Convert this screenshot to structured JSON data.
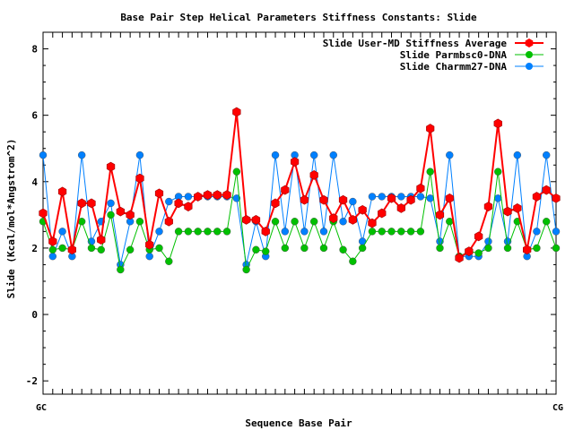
{
  "chart_data": {
    "type": "line",
    "title": "Base Pair Step Helical Parameters Stiffness Constants: Slide",
    "xlabel": "Sequence Base Pair",
    "ylabel": "Slide (Kcal/mol*Angstrom^2)",
    "ylim": [
      -2.4,
      8.5
    ],
    "yticks": [
      -2,
      0,
      2,
      4,
      6,
      8
    ],
    "grid": false,
    "legend_position": "top-right",
    "x_tick_labels": [
      "GC",
      "CG"
    ],
    "series": [
      {
        "name": "Slide User-MD Stiffness Average",
        "color": "#ff0000",
        "marker": "hexagon",
        "values": [
          3.05,
          2.2,
          3.7,
          1.95,
          3.35,
          3.35,
          2.25,
          4.45,
          3.1,
          3.0,
          4.1,
          2.1,
          3.65,
          2.8,
          3.35,
          3.25,
          3.55,
          3.6,
          3.6,
          3.6,
          6.1,
          2.85,
          2.85,
          2.5,
          3.35,
          3.75,
          4.6,
          3.45,
          4.2,
          3.45,
          2.9,
          3.45,
          2.85,
          3.15,
          2.75,
          3.05,
          3.5,
          3.2,
          3.45,
          3.8,
          5.6,
          3.0,
          3.5,
          1.7,
          1.9,
          2.35,
          3.25,
          5.75,
          3.1,
          3.2,
          1.95,
          3.55,
          3.75,
          3.5
        ]
      },
      {
        "name": "Slide Parmbsc0-DNA",
        "color": "#00c000",
        "marker": "circle",
        "values": [
          2.8,
          1.95,
          2.0,
          1.95,
          2.8,
          2.0,
          1.95,
          3.0,
          1.35,
          1.95,
          2.8,
          1.95,
          2.0,
          1.6,
          2.5,
          2.5,
          2.5,
          2.5,
          2.5,
          2.5,
          4.3,
          1.35,
          1.95,
          1.9,
          2.8,
          2.0,
          2.8,
          2.0,
          2.8,
          2.0,
          2.8,
          1.95,
          1.6,
          2.0,
          2.5,
          2.5,
          2.5,
          2.5,
          2.5,
          2.5,
          4.3,
          2.0,
          2.8,
          1.75,
          1.9,
          1.85,
          2.0,
          4.3,
          2.0,
          2.8,
          1.95,
          2.0,
          2.8,
          2.0
        ]
      },
      {
        "name": "Slide Charmm27-DNA",
        "color": "#0080ff",
        "marker": "circle",
        "values": [
          4.8,
          1.75,
          2.5,
          1.75,
          4.8,
          2.2,
          2.8,
          3.35,
          1.5,
          2.8,
          4.8,
          1.75,
          2.5,
          3.4,
          3.55,
          3.55,
          3.55,
          3.55,
          3.55,
          3.55,
          3.5,
          1.5,
          2.8,
          1.75,
          4.8,
          2.5,
          4.8,
          2.5,
          4.8,
          2.5,
          4.8,
          2.8,
          3.4,
          2.2,
          3.55,
          3.55,
          3.55,
          3.55,
          3.55,
          3.55,
          3.5,
          2.2,
          4.8,
          1.75,
          1.75,
          1.75,
          2.2,
          3.5,
          2.2,
          4.8,
          1.75,
          2.5,
          4.8,
          2.5
        ]
      }
    ]
  }
}
